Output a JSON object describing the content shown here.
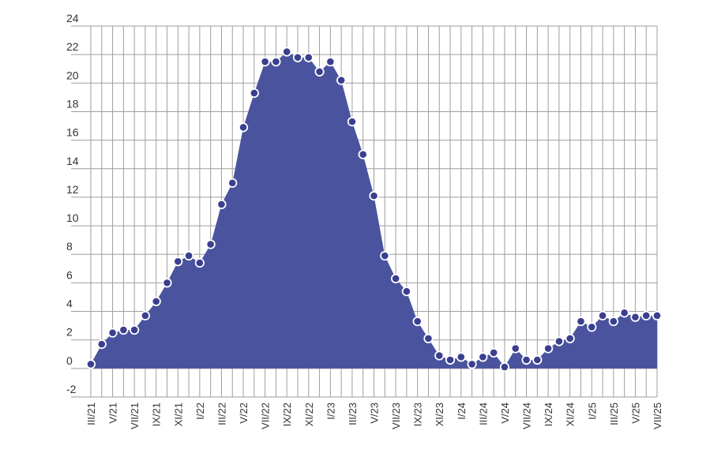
{
  "colors": {
    "area_fill": "#4a539e",
    "marker_fill": "#3a3f8f",
    "marker_stroke": "#ffffff",
    "grid": "#9e9e9e",
    "text": "#333333"
  },
  "chart_data": {
    "type": "area",
    "title": "",
    "xlabel": "",
    "ylabel": "",
    "ylim": [
      -2,
      24
    ],
    "yticks": [
      -2,
      0,
      2,
      4,
      6,
      8,
      10,
      12,
      14,
      16,
      18,
      20,
      22,
      24
    ],
    "grid": true,
    "markers": true,
    "x": [
      "III/21",
      "IV/21",
      "V/21",
      "VI/21",
      "VII/21",
      "VIII/21",
      "IX/21",
      "X/21",
      "XI/21",
      "XII/21",
      "I/22",
      "II/22",
      "III/22",
      "IV/22",
      "V/22",
      "VI/22",
      "VII/22",
      "VIII/22",
      "IX/22",
      "X/22",
      "XI/22",
      "XII/22",
      "I/23",
      "II/23",
      "III/23",
      "IV/23",
      "V/23",
      "VI/23",
      "VII/23",
      "VIII/23",
      "IX/23",
      "X/23",
      "XI/23",
      "XII/23",
      "I/24",
      "II/24",
      "III/24",
      "IV/24",
      "V/24",
      "VI/24",
      "VII/24",
      "VIII/24",
      "IX/24",
      "X/24",
      "XI/24",
      "XII/24",
      "I/25",
      "II/25",
      "III/25",
      "IV/25",
      "V/25",
      "VI/25",
      "VII/25"
    ],
    "xtick_labels": [
      "III/21",
      "V/21",
      "VII/21",
      "IX/21",
      "XI/21",
      "I/22",
      "III/22",
      "V/22",
      "VII/22",
      "IX/22",
      "XI/22",
      "I/23",
      "III/23",
      "V/23",
      "VII/23",
      "IX/23",
      "XI/23",
      "I/24",
      "III/24",
      "V/24",
      "VII/24",
      "IX/24",
      "XI/24",
      "I/25",
      "III/25",
      "V/25",
      "VII/25"
    ],
    "series": [
      {
        "values": [
          0.3,
          1.7,
          2.5,
          2.7,
          2.7,
          3.7,
          4.7,
          6.0,
          7.5,
          7.9,
          7.4,
          8.7,
          11.5,
          13.0,
          16.9,
          19.3,
          21.5,
          21.5,
          22.2,
          21.8,
          21.8,
          20.8,
          21.5,
          20.2,
          17.3,
          15.0,
          12.1,
          7.9,
          6.3,
          5.4,
          3.3,
          2.1,
          0.9,
          0.6,
          0.8,
          0.3,
          0.8,
          1.1,
          0.1,
          1.4,
          0.6,
          0.6,
          1.4,
          1.9,
          2.1,
          3.3,
          2.9,
          3.7,
          3.3,
          3.9,
          3.6,
          3.7,
          3.7
        ]
      }
    ]
  }
}
